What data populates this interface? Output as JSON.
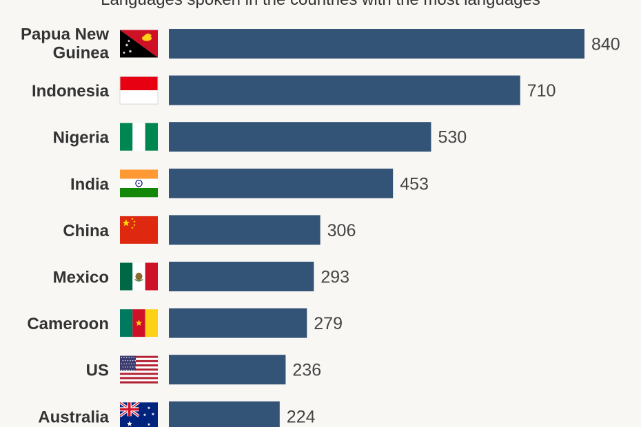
{
  "header": {
    "subtitle": "Languages spoken in the countries with the most languages"
  },
  "chart_data": {
    "type": "bar",
    "orientation": "horizontal",
    "categories": [
      "Papua New Guinea",
      "Indonesia",
      "Nigeria",
      "India",
      "China",
      "Mexico",
      "Cameroon",
      "US",
      "Australia"
    ],
    "values": [
      840,
      710,
      530,
      453,
      306,
      293,
      279,
      236,
      224
    ],
    "data_labels": [
      "840",
      "710",
      "530",
      "453",
      "306",
      "293",
      "279",
      "236",
      "224"
    ],
    "xlim": [
      0,
      840
    ],
    "grid": false,
    "legend": "none",
    "colors": {
      "bar": "#335377",
      "label": "#333333",
      "value": "#444444",
      "background": "#f8f7f4"
    }
  },
  "flags": [
    {
      "country": "Papua New Guinea",
      "icon": "papua-new-guinea-flag-icon"
    },
    {
      "country": "Indonesia",
      "icon": "indonesia-flag-icon"
    },
    {
      "country": "Nigeria",
      "icon": "nigeria-flag-icon"
    },
    {
      "country": "India",
      "icon": "india-flag-icon"
    },
    {
      "country": "China",
      "icon": "china-flag-icon"
    },
    {
      "country": "Mexico",
      "icon": "mexico-flag-icon"
    },
    {
      "country": "Cameroon",
      "icon": "cameroon-flag-icon"
    },
    {
      "country": "US",
      "icon": "us-flag-icon"
    },
    {
      "country": "Australia",
      "icon": "australia-flag-icon"
    }
  ]
}
